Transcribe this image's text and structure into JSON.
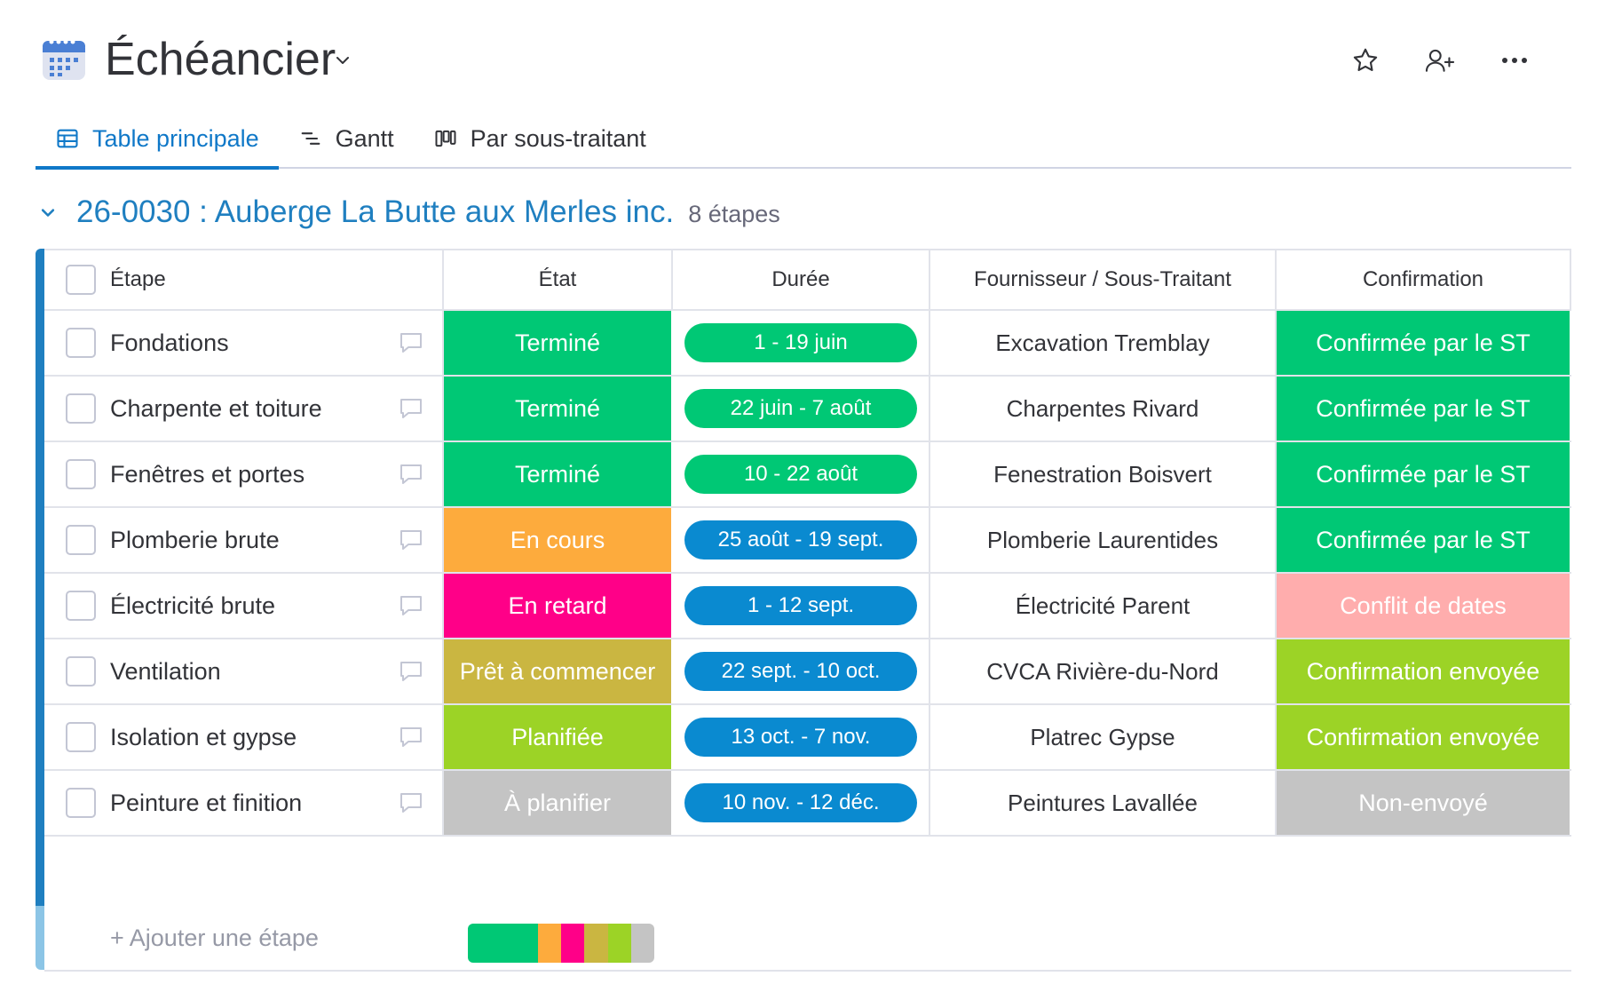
{
  "board": {
    "title": "Échéancier",
    "icon": "calendar-icon"
  },
  "header_actions": [
    "star-icon",
    "invite-user-icon",
    "more-icon"
  ],
  "tabs": [
    {
      "label": "Table principale",
      "icon": "table-icon",
      "active": true
    },
    {
      "label": "Gantt",
      "icon": "gantt-icon",
      "active": false
    },
    {
      "label": "Par sous-traitant",
      "icon": "kanban-icon",
      "active": false
    }
  ],
  "group": {
    "title": "26-0030 : Auberge La Butte aux Merles inc.",
    "count": "8 étapes",
    "color": "#1f7fc0"
  },
  "columns": {
    "name": "Étape",
    "state": "État",
    "duration": "Durée",
    "supplier": "Fournisseur / Sous-Traitant",
    "confirmation": "Confirmation"
  },
  "colors": {
    "termine": "#00c875",
    "en_cours": "#fdab3d",
    "en_retard": "#ff0088",
    "pret": "#cab641",
    "planifiee": "#9cd326",
    "a_planifier": "#c4c4c4",
    "conflit": "#ffadad",
    "duration_blue": "#0a8ad0",
    "duration_green": "#00c875"
  },
  "rows": [
    {
      "name": "Fondations",
      "state": "Terminé",
      "state_color": "#00c875",
      "duration": "1 - 19 juin",
      "duration_color": "#00c875",
      "supplier": "Excavation Tremblay",
      "confirmation": "Confirmée par le ST",
      "confirmation_color": "#00c875"
    },
    {
      "name": "Charpente et toiture",
      "state": "Terminé",
      "state_color": "#00c875",
      "duration": "22 juin - 7 août",
      "duration_color": "#00c875",
      "supplier": "Charpentes Rivard",
      "confirmation": "Confirmée par le ST",
      "confirmation_color": "#00c875"
    },
    {
      "name": "Fenêtres et portes",
      "state": "Terminé",
      "state_color": "#00c875",
      "duration": "10 - 22 août",
      "duration_color": "#00c875",
      "supplier": "Fenestration Boisvert",
      "confirmation": "Confirmée par le ST",
      "confirmation_color": "#00c875"
    },
    {
      "name": "Plomberie brute",
      "state": "En cours",
      "state_color": "#fdab3d",
      "duration": "25 août - 19 sept.",
      "duration_color": "#0a8ad0",
      "supplier": "Plomberie Laurentides",
      "confirmation": "Confirmée par le ST",
      "confirmation_color": "#00c875"
    },
    {
      "name": "Électricité brute",
      "state": "En retard",
      "state_color": "#ff0088",
      "duration": "1 - 12 sept.",
      "duration_color": "#0a8ad0",
      "supplier": "Électricité Parent",
      "confirmation": "Conflit de dates",
      "confirmation_color": "#ffadad"
    },
    {
      "name": "Ventilation",
      "state": "Prêt à commencer",
      "state_color": "#cab641",
      "duration": "22 sept. - 10 oct.",
      "duration_color": "#0a8ad0",
      "supplier": "CVCA Rivière-du-Nord",
      "confirmation": "Confirmation envoyée",
      "confirmation_color": "#9cd326"
    },
    {
      "name": "Isolation et gypse",
      "state": "Planifiée",
      "state_color": "#9cd326",
      "duration": "13 oct. - 7 nov.",
      "duration_color": "#0a8ad0",
      "supplier": "Platrec Gypse",
      "confirmation": "Confirmation envoyée",
      "confirmation_color": "#9cd326"
    },
    {
      "name": "Peinture et finition",
      "state": "À planifier",
      "state_color": "#c4c4c4",
      "duration": "10 nov. - 12 déc.",
      "duration_color": "#0a8ad0",
      "supplier": "Peintures Lavallée",
      "confirmation": "Non-envoyé",
      "confirmation_color": "#c4c4c4"
    }
  ],
  "add_row_label": "+ Ajouter une étape",
  "state_summary": [
    {
      "color": "#00c875",
      "fraction": 0.375
    },
    {
      "color": "#fdab3d",
      "fraction": 0.125
    },
    {
      "color": "#ff0088",
      "fraction": 0.125
    },
    {
      "color": "#cab641",
      "fraction": 0.125
    },
    {
      "color": "#9cd326",
      "fraction": 0.125
    },
    {
      "color": "#c4c4c4",
      "fraction": 0.125
    }
  ]
}
